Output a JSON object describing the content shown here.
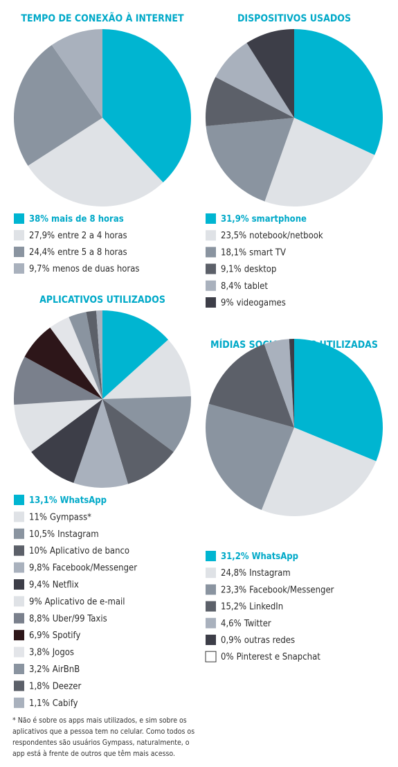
{
  "chart_data": [
    {
      "type": "pie",
      "title": "TEMPO DE CONEXÃO À INTERNET",
      "categories": [
        "mais de 8 horas",
        "entre 2 a 4 horas",
        "entre 5 a 8 horas",
        "menos de duas horas"
      ],
      "values": [
        38,
        27.9,
        24.4,
        9.7
      ],
      "value_labels": [
        "38%",
        "27,9%",
        "24,4%",
        "9,7%"
      ],
      "colors": [
        "#00b5d1",
        "#dfe2e6",
        "#8a94a0",
        "#a9b1bd"
      ]
    },
    {
      "type": "pie",
      "title": "DISPOSITIVOS USADOS",
      "categories": [
        "smartphone",
        "notebook/netbook",
        "smart TV",
        "desktop",
        "tablet",
        "videogames"
      ],
      "values": [
        31.9,
        23.5,
        18.1,
        9.1,
        8.4,
        9
      ],
      "value_labels": [
        "31,9%",
        "23,5%",
        "18,1%",
        "9,1%",
        "8,4%",
        "9%"
      ],
      "colors": [
        "#00b5d1",
        "#dfe2e6",
        "#8a94a0",
        "#5c6069",
        "#a9b1bd",
        "#3d3e48"
      ]
    },
    {
      "type": "pie",
      "title": "APLICATIVOS UTILIZADOS",
      "categories": [
        "WhatsApp",
        "Gympass*",
        "Instagram",
        "Aplicativo de banco",
        "Facebook/Messenger",
        "Netflix",
        "Aplicativo de e-mail",
        "Uber/99 Taxis",
        "Spotify",
        "Jogos",
        "AirBnB",
        "Deezer",
        "Cabify"
      ],
      "values": [
        13.1,
        11,
        10.5,
        10,
        9.8,
        9.4,
        9,
        8.8,
        6.9,
        3.8,
        3.2,
        1.8,
        1.1
      ],
      "value_labels": [
        "13,1%",
        "11%",
        "10,5%",
        "10%",
        "9,8%",
        "9,4%",
        "9%",
        "8,8%",
        "6,9%",
        "3,8%",
        "3,2%",
        "1,8%",
        "1,1%"
      ],
      "colors": [
        "#00b5d1",
        "#dfe2e6",
        "#8a94a0",
        "#5c6069",
        "#a9b1bd",
        "#3d3e48",
        "#dfe2e6",
        "#7a808c",
        "#2d1619",
        "#e3e5e9",
        "#8a94a0",
        "#5c6069",
        "#a9b1bd"
      ]
    },
    {
      "type": "pie",
      "title": "MÍDIAS SOCIAIS MAIS UTILIZADAS",
      "categories": [
        "WhatsApp",
        "Instagram",
        "Facebook/Messenger",
        "LinkedIn",
        "Twitter",
        "outras redes",
        "Pinterest e Snapchat"
      ],
      "values": [
        31.2,
        24.8,
        23.3,
        15.2,
        4.6,
        0.9,
        0
      ],
      "value_labels": [
        "31,2%",
        "24,8%",
        "23,3%",
        "15,2%",
        "4,6%",
        "0,9%",
        "0%"
      ],
      "colors": [
        "#00b5d1",
        "#dfe2e6",
        "#8a94a0",
        "#5c6069",
        "#a9b1bd",
        "#3d3e48",
        "#ffffff"
      ]
    }
  ],
  "note": [
    "* Não é sobre os apps mais utilizados, e sim sobre os",
    "aplicativos que a pessoa tem no celular. Como todos os",
    "respondentes são usuários Gympass, naturalmente, o",
    "app está à frente de outros que têm mais acesso."
  ]
}
